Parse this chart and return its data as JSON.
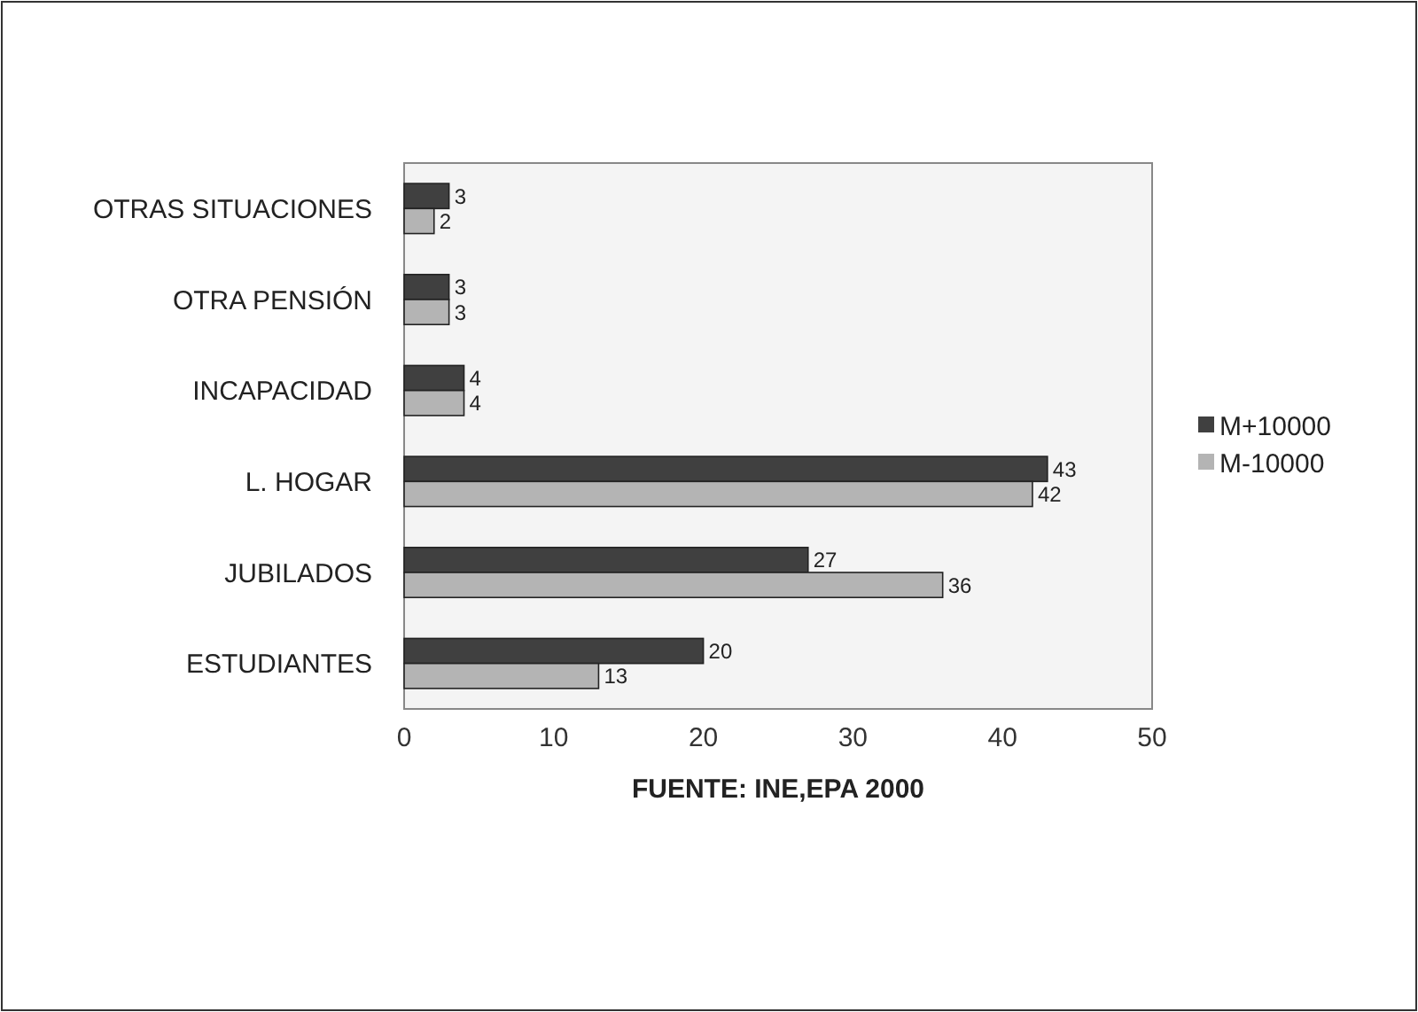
{
  "chart_data": {
    "type": "bar",
    "orientation": "horizontal",
    "xlabel": "FUENTE: INE,EPA 2000",
    "categories": [
      "OTRAS SITUACIONES",
      "OTRA PENSIÓN",
      "INCAPACIDAD",
      "L. HOGAR",
      "JUBILADOS",
      "ESTUDIANTES"
    ],
    "series": [
      {
        "name": "M+10000",
        "color": "#404040",
        "values": [
          3,
          3,
          4,
          43,
          27,
          20
        ]
      },
      {
        "name": "M-10000",
        "color": "#b4b4b4",
        "values": [
          2,
          3,
          4,
          42,
          36,
          13
        ]
      }
    ],
    "xlim": [
      0,
      50
    ],
    "xticks": [
      0,
      10,
      20,
      30,
      40,
      50
    ],
    "grid": false,
    "legend": "right",
    "data_labels": true
  }
}
